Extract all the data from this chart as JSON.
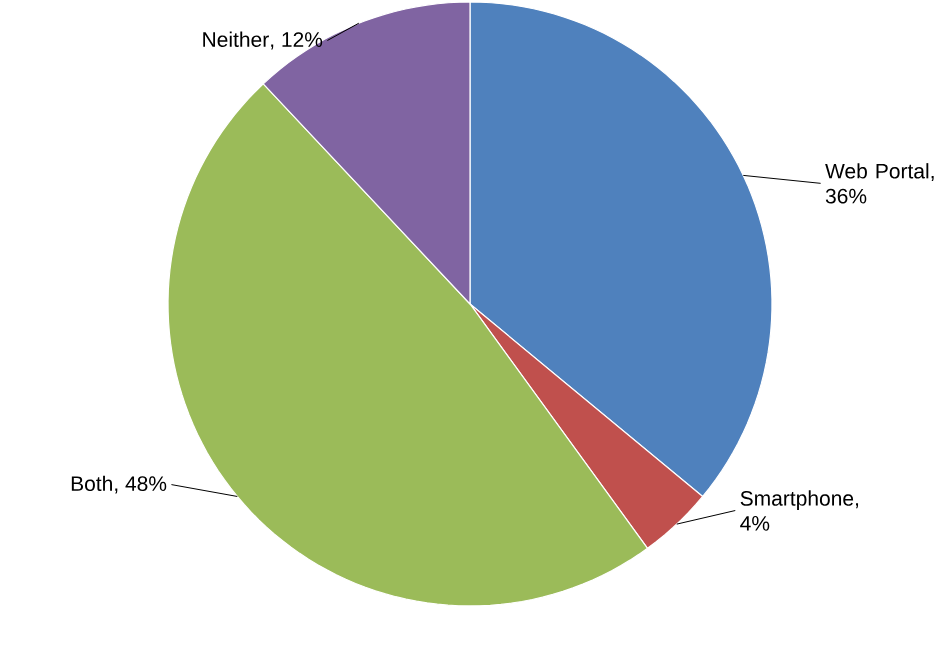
{
  "chart_data": {
    "type": "pie",
    "categories": [
      "Web Portal",
      "Smartphone",
      "Both",
      "Neither"
    ],
    "values": [
      36,
      4,
      48,
      12
    ],
    "value_labels": [
      ", 36%",
      ", 4%",
      ", 48%",
      ", 12%"
    ],
    "colors": [
      "#4f81bd",
      "#c0504d",
      "#9bbb59",
      "#8064a2"
    ]
  }
}
